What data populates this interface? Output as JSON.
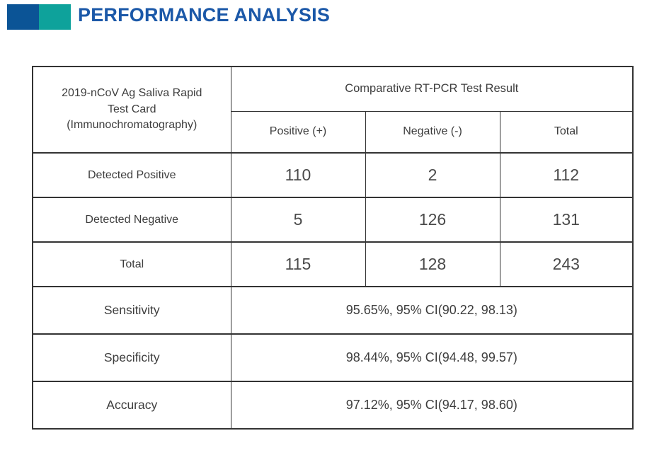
{
  "header": {
    "title": "PERFORMANCE ANALYSIS",
    "title_color": "#1b58a8",
    "accent_blue": "#0b5496",
    "accent_teal": "#0ea29b"
  },
  "table": {
    "corner_header": "2019-nCoV Ag Saliva Rapid Test Card (Immunochromatography)",
    "group_header": "Comparative RT-PCR Test Result",
    "column_headers": [
      "Positive (+)",
      "Negative (-)",
      "Total"
    ],
    "rows": [
      {
        "label": "Detected Positive",
        "values": [
          "110",
          "2",
          "112"
        ]
      },
      {
        "label": "Detected Negative",
        "values": [
          "5",
          "126",
          "131"
        ]
      },
      {
        "label": "Total",
        "values": [
          "115",
          "128",
          "243"
        ]
      }
    ],
    "stats": [
      {
        "label": "Sensitivity",
        "value": "95.65%, 95% CI(90.22, 98.13)"
      },
      {
        "label": "Specificity",
        "value": "98.44%, 95% CI(94.48, 99.57)"
      },
      {
        "label": "Accuracy",
        "value": "97.12%, 95% CI(94.17, 98.60)"
      }
    ],
    "border_color": "#333333",
    "text_color": "#3d3d3d"
  }
}
